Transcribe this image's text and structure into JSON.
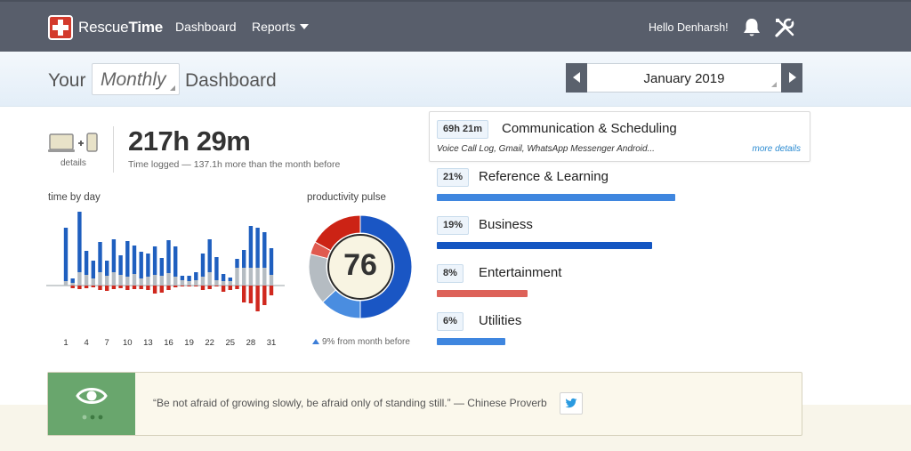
{
  "nav": {
    "brand_regular": "Rescue",
    "brand_bold": "Time",
    "dashboard": "Dashboard",
    "reports": "Reports",
    "greeting": "Hello Denharsh!"
  },
  "header": {
    "title_prefix": "Your",
    "period": "Monthly",
    "title_suffix": "Dashboard",
    "date": "January 2019"
  },
  "summary": {
    "details_label": "details",
    "total_time": "217h 29m",
    "time_logged_note": "Time logged — 137.1h more than the month before"
  },
  "time_by_day": {
    "label": "time by day",
    "day_labels": [
      "1",
      "4",
      "7",
      "10",
      "13",
      "16",
      "19",
      "22",
      "25",
      "28",
      "31"
    ],
    "colors": {
      "productive": "#1f5fbf",
      "neutral": "#b5bcc2",
      "distracting": "#d0281e"
    },
    "chart_data": {
      "type": "bar",
      "x": [
        1,
        2,
        3,
        4,
        5,
        6,
        7,
        8,
        9,
        10,
        11,
        12,
        13,
        14,
        15,
        16,
        17,
        18,
        19,
        20,
        21,
        22,
        23,
        24,
        25,
        26,
        27,
        28,
        29,
        30,
        31
      ],
      "series": [
        {
          "key": "productive",
          "values": [
            6.0,
            0.5,
            6.8,
            2.7,
            2.0,
            3.4,
            1.7,
            3.7,
            2.2,
            4.0,
            3.2,
            3.0,
            2.6,
            3.2,
            2.0,
            3.7,
            3.4,
            0.5,
            0.6,
            0.9,
            2.6,
            3.7,
            2.6,
            0.8,
            0.4,
            1.0,
            2.0,
            4.7,
            4.5,
            4.0,
            3.0
          ]
        },
        {
          "key": "neutral",
          "values": [
            0.5,
            0.3,
            1.5,
            1.2,
            0.8,
            1.5,
            1.1,
            1.5,
            1.2,
            1.0,
            1.3,
            0.8,
            1.0,
            1.2,
            1.1,
            1.4,
            1.0,
            0.6,
            0.5,
            0.6,
            1.0,
            1.5,
            0.6,
            0.5,
            0.5,
            2.0,
            2.0,
            2.0,
            2.0,
            2.0,
            1.2
          ]
        },
        {
          "key": "distracting",
          "values": [
            0.0,
            0.3,
            0.4,
            0.3,
            0.2,
            0.5,
            0.6,
            0.4,
            0.3,
            0.5,
            0.4,
            0.4,
            0.5,
            0.9,
            0.8,
            0.5,
            0.2,
            0.1,
            0.1,
            0.1,
            0.5,
            0.4,
            0.1,
            0.7,
            0.5,
            0.4,
            1.9,
            2.0,
            2.9,
            2.2,
            1.1
          ]
        }
      ]
    }
  },
  "productivity_pulse": {
    "label": "productivity pulse",
    "score": "76",
    "change_note": "9% from month before",
    "colors": {
      "very_productive": "#1a56c4",
      "productive": "#4a8de0",
      "neutral": "#b5bcc2",
      "distracting": "#e05a4f",
      "very_distracting": "#cc2315"
    },
    "chart_data": {
      "type": "pie",
      "labels": [
        "very_productive",
        "productive",
        "neutral",
        "distracting",
        "very_distracting"
      ],
      "values": [
        50,
        13,
        16,
        4,
        17
      ]
    }
  },
  "categories": [
    {
      "badge": "69h 21m",
      "name": "Communication & Scheduling",
      "sub": "Voice Call Log, Gmail, WhatsApp Messenger Android...",
      "more": "more details"
    },
    {
      "badge": "21%",
      "name": "Reference & Learning",
      "share": 0.21,
      "color": "#3f86df"
    },
    {
      "badge": "19%",
      "name": "Business",
      "share": 0.19,
      "color": "#1456c2"
    },
    {
      "badge": "8%",
      "name": "Entertainment",
      "share": 0.08,
      "color": "#dd6259"
    },
    {
      "badge": "6%",
      "name": "Utilities",
      "share": 0.06,
      "color": "#3f86df"
    }
  ],
  "quote": {
    "text": "“Be not afraid of growing slowly, be afraid only of standing still.” — Chinese Proverb"
  },
  "icons": {
    "bell": "bell-icon",
    "tools": "tools-icon",
    "eye": "eye-icon",
    "twitter": "twitter-icon"
  }
}
